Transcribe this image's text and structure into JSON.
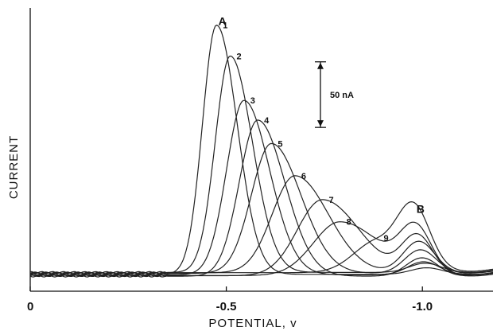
{
  "chart_data": {
    "type": "line",
    "xlabel": "POTENTIAL, v",
    "ylabel": "CURRENT",
    "x_ticks": [
      {
        "value": 0,
        "label": "0"
      },
      {
        "value": -0.5,
        "label": "-0.5"
      },
      {
        "value": -1.0,
        "label": "-1.0"
      }
    ],
    "xlim": [
      0,
      -1.18
    ],
    "ylim": [
      0,
      205
    ],
    "peak_labels": [
      {
        "text": "A",
        "x": -0.49,
        "y": 198
      },
      {
        "text": "B",
        "x": -0.995,
        "y": 55
      }
    ],
    "scale_bar": {
      "label": "50 nA",
      "value": 50,
      "x": -0.74,
      "y_bottom": 120
    },
    "series": [
      {
        "name": "1",
        "peak_x": -0.475,
        "peak_height": 190,
        "width": 0.042,
        "b_height": 5
      },
      {
        "name": "2",
        "peak_x": -0.51,
        "peak_height": 165,
        "width": 0.045,
        "b_height": 7
      },
      {
        "name": "3",
        "peak_x": -0.545,
        "peak_height": 133,
        "width": 0.052,
        "b_height": 10
      },
      {
        "name": "4",
        "peak_x": -0.58,
        "peak_height": 119,
        "width": 0.055,
        "b_height": 14
      },
      {
        "name": "5",
        "peak_x": -0.615,
        "peak_height": 99,
        "width": 0.06,
        "b_height": 18
      },
      {
        "name": "6",
        "peak_x": -0.675,
        "peak_height": 74,
        "width": 0.068,
        "b_height": 24
      },
      {
        "name": "7",
        "peak_x": -0.745,
        "peak_height": 58,
        "width": 0.075,
        "b_height": 30
      },
      {
        "name": "8",
        "peak_x": -0.79,
        "peak_height": 41,
        "width": 0.08,
        "b_height": 34
      },
      {
        "name": "9",
        "peak_x": -0.885,
        "peak_height": 24,
        "width": 0.07,
        "b_height": 40
      }
    ]
  }
}
